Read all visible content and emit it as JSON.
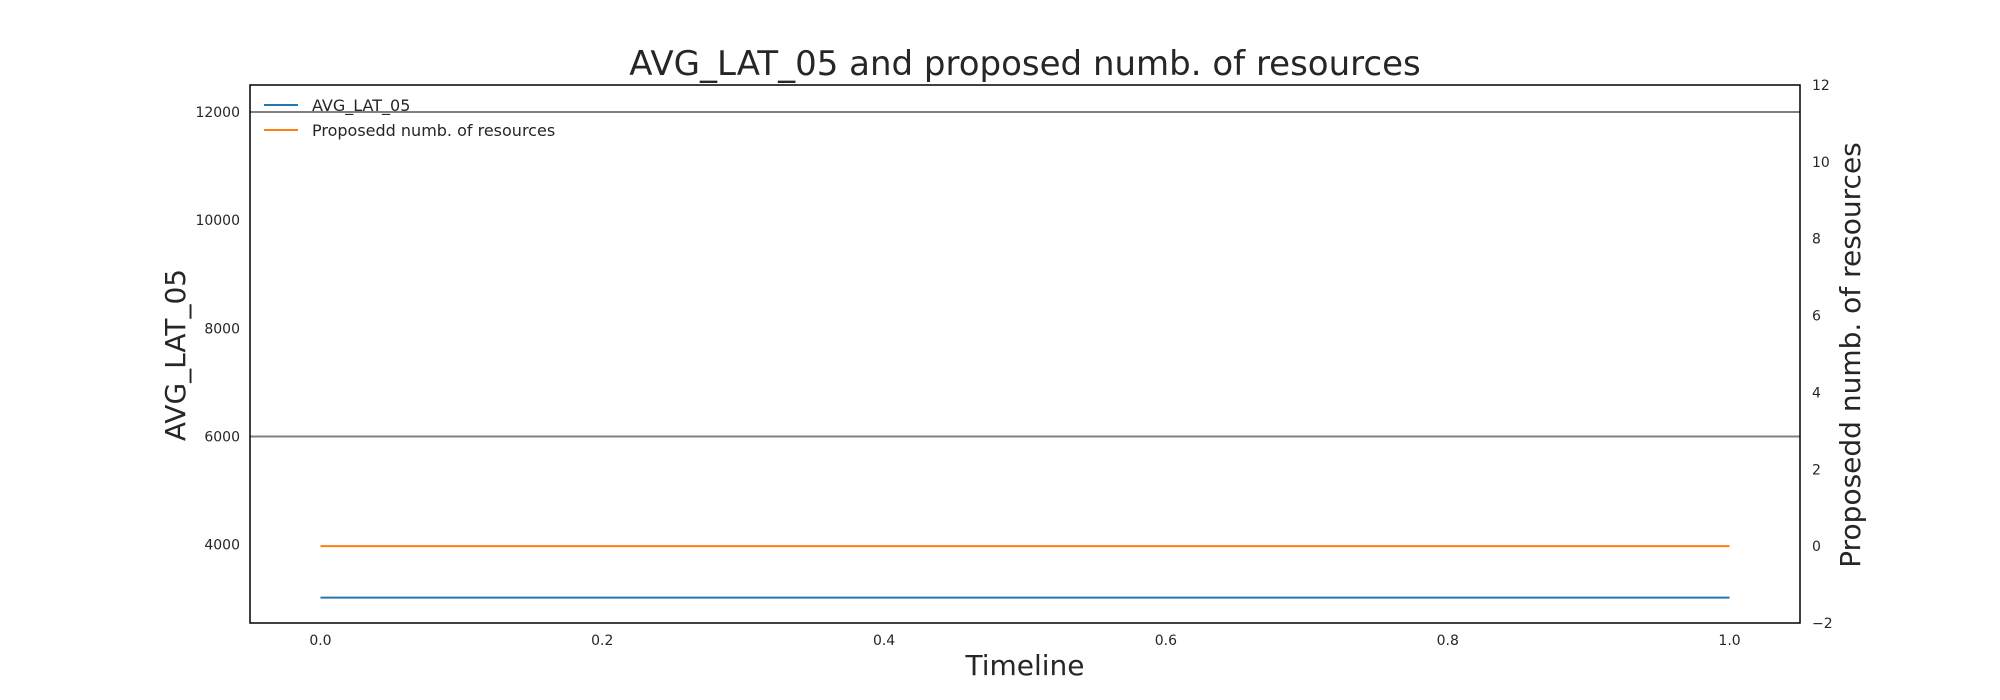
{
  "chart_data": {
    "type": "line",
    "title": "AVG_LAT_05 and proposed numb. of resources",
    "xlabel": "Timeline",
    "ylabel_left": "AVG_LAT_05",
    "ylabel_right": "Proposedd numb. of resources",
    "x": [
      0.0,
      1.0
    ],
    "xlim": [
      -0.05,
      1.05
    ],
    "xticks": [
      0.0,
      0.2,
      0.4,
      0.6,
      0.8,
      1.0
    ],
    "xtick_labels": [
      "0.0",
      "0.2",
      "0.4",
      "0.6",
      "0.8",
      "1.0"
    ],
    "ylim_left": [
      2550,
      12500
    ],
    "yticks_left": [
      4000,
      6000,
      8000,
      10000,
      12000
    ],
    "ylim_right": [
      -2,
      12
    ],
    "yticks_right": [
      -2,
      0,
      2,
      4,
      6,
      8,
      10,
      12
    ],
    "ytick_labels_right": [
      "−2",
      "0",
      "2",
      "4",
      "6",
      "8",
      "10",
      "12"
    ],
    "hlines_left": [
      12000,
      6000
    ],
    "series": [
      {
        "name": "AVG_LAT_05",
        "axis": "left",
        "color": "#1f77b4",
        "values": [
          3020,
          3020
        ]
      },
      {
        "name": "Proposedd numb. of resources",
        "axis": "right",
        "color": "#ff7f0e",
        "values": [
          0,
          0
        ]
      }
    ],
    "hline_color": "#808080",
    "grid": false,
    "legend_position": "upper-left"
  }
}
